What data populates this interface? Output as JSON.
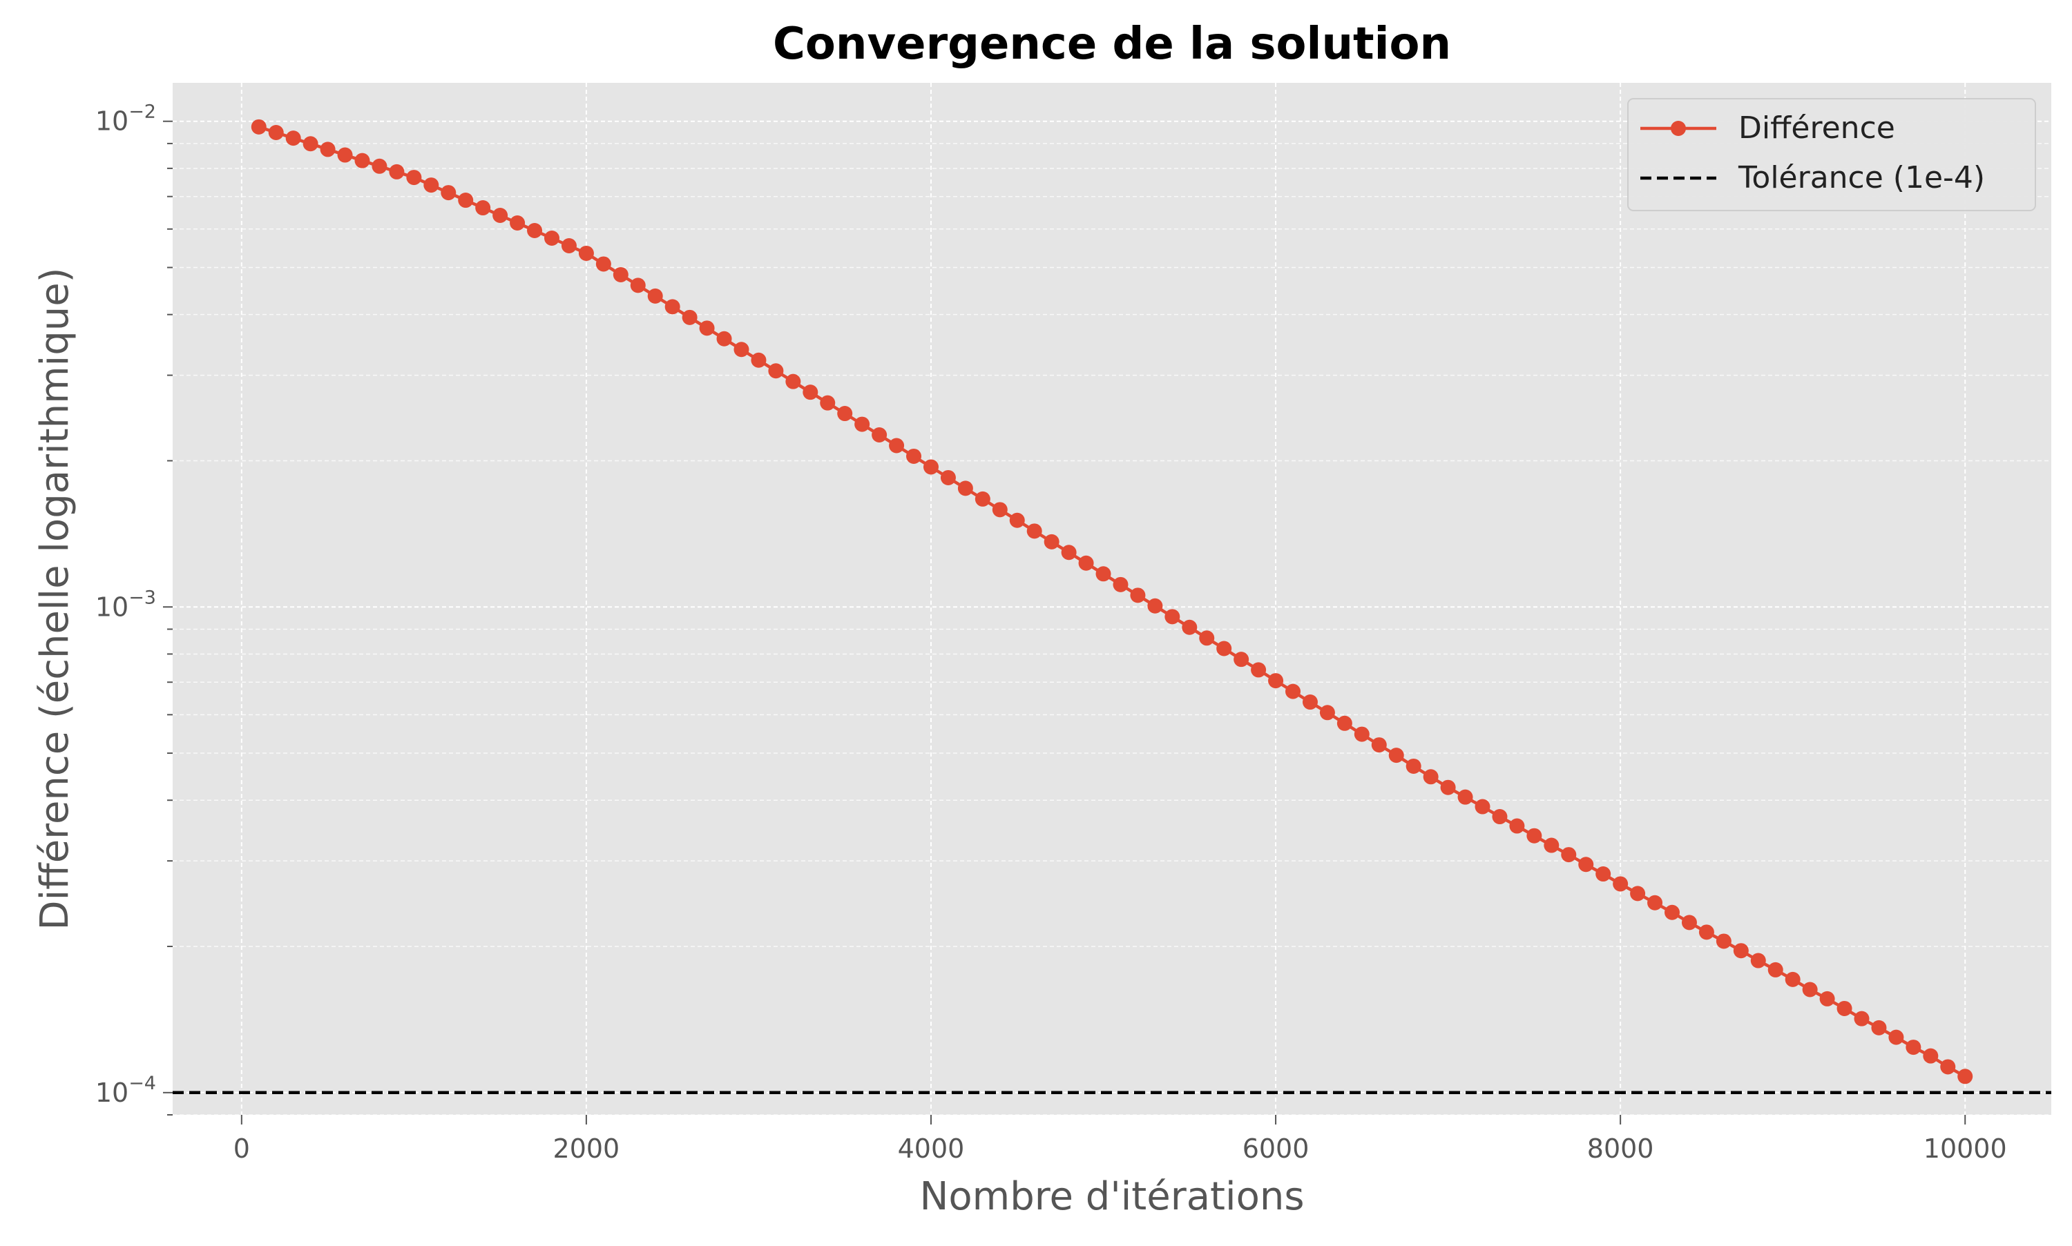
{
  "chart_data": {
    "type": "line",
    "title": "Convergence de la solution",
    "xlabel": "Nombre d'itérations",
    "ylabel": "Différence (échelle logarithmique)",
    "xlim": [
      -400,
      10500
    ],
    "ylim": [
      9e-05,
      0.012
    ],
    "yscale": "log",
    "grid": true,
    "legend_position": "top-right",
    "x_ticks": [
      0,
      2000,
      4000,
      6000,
      8000,
      10000
    ],
    "x_tick_labels": [
      "0",
      "2000",
      "4000",
      "6000",
      "8000",
      "10000"
    ],
    "y_ticks": [
      {
        "value": 0.01,
        "base": "10",
        "exp": "−2"
      },
      {
        "value": 0.001,
        "base": "10",
        "exp": "−3"
      },
      {
        "value": 0.0001,
        "base": "10",
        "exp": "−4"
      }
    ],
    "series": [
      {
        "name": "Différence",
        "color": "#E24A33",
        "style": "line-marker",
        "x_start": 100,
        "x_step": 100,
        "count": 100,
        "values": [
          0.009738,
          0.009481,
          0.009232,
          0.008989,
          0.008753,
          0.008523,
          0.008299,
          0.008081,
          0.007869,
          0.007662,
          0.007391,
          0.00713,
          0.006878,
          0.006635,
          0.006401,
          0.006175,
          0.005957,
          0.005746,
          0.005543,
          0.005348,
          0.005083,
          0.004832,
          0.004594,
          0.004367,
          0.004151,
          0.003946,
          0.003751,
          0.003566,
          0.00339,
          0.003222,
          0.003063,
          0.002912,
          0.002768,
          0.002631,
          0.002502,
          0.002378,
          0.002261,
          0.002149,
          0.002043,
          0.001942,
          0.001846,
          0.001755,
          0.001668,
          0.001586,
          0.001508,
          0.001433,
          0.001362,
          0.001295,
          0.001231,
          0.00117,
          0.001112,
          0.001057,
          0.001005,
          0.000955,
          0.000908,
          0.000863,
          0.000821,
          0.00078,
          0.000742,
          0.000705,
          0.00067,
          0.000637,
          0.000606,
          0.000576,
          0.000547,
          0.00052,
          0.000495,
          0.00047,
          0.000447,
          0.000425,
          0.000406,
          0.000388,
          0.00037,
          0.000354,
          0.000338,
          0.000323,
          0.000309,
          0.000295,
          0.000282,
          0.000269,
          0.000257,
          0.000246,
          0.000235,
          0.000224,
          0.000214,
          0.000205,
          0.000196,
          0.000187,
          0.000179,
          0.000171,
          0.000163,
          0.000156,
          0.000149,
          0.000142,
          0.000136,
          0.00013,
          0.000124,
          0.000119,
          0.000113,
          0.000108
        ]
      }
    ],
    "reference_lines": [
      {
        "name": "Tolérance (1e-4)",
        "value": 0.0001,
        "color": "#000000",
        "style": "dashed"
      }
    ]
  }
}
